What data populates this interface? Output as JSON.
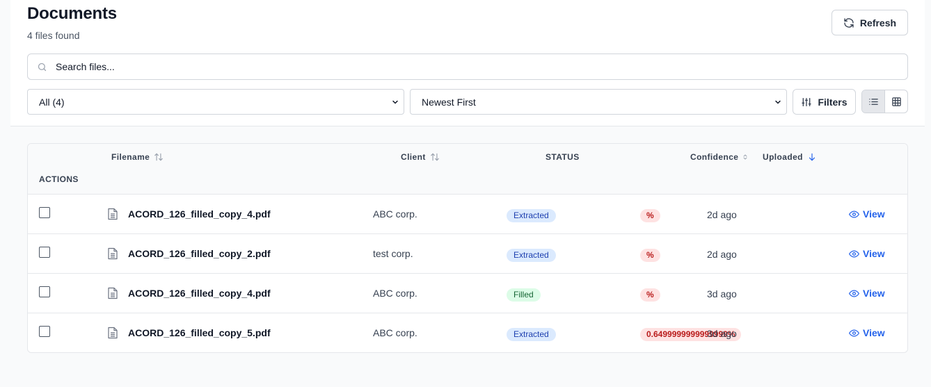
{
  "header": {
    "title": "Documents",
    "subtitle": "4 files found",
    "refresh_label": "Refresh"
  },
  "search": {
    "placeholder": "Search files..."
  },
  "filters": {
    "status_selected": "All (4)",
    "sort_selected": "Newest First",
    "filters_label": "Filters",
    "view_mode": "list"
  },
  "table": {
    "columns": {
      "filename": "Filename",
      "client": "Client",
      "status": "STATUS",
      "confidence": "Confidence",
      "uploaded": "Uploaded",
      "actions": "ACTIONS"
    },
    "rows": [
      {
        "filename": "ACORD_126_filled_copy_4.pdf",
        "client": "ABC corp.",
        "status": "Extracted",
        "confidence": "%",
        "uploaded": "2d ago",
        "action": "View"
      },
      {
        "filename": "ACORD_126_filled_copy_2.pdf",
        "client": "test corp.",
        "status": "Extracted",
        "confidence": "%",
        "uploaded": "2d ago",
        "action": "View"
      },
      {
        "filename": "ACORD_126_filled_copy_4.pdf",
        "client": "ABC corp.",
        "status": "Filled",
        "confidence": "%",
        "uploaded": "3d ago",
        "action": "View"
      },
      {
        "filename": "ACORD_126_filled_copy_5.pdf",
        "client": "ABC corp.",
        "status": "Extracted",
        "confidence": "0.6499999999999999%",
        "uploaded": "3d ago",
        "action": "View"
      }
    ]
  },
  "colors": {
    "accent": "#2563eb",
    "badge_extracted_bg": "#dbeafe",
    "badge_filled_bg": "#dcfce7",
    "confidence_bg": "#fee2e2"
  }
}
